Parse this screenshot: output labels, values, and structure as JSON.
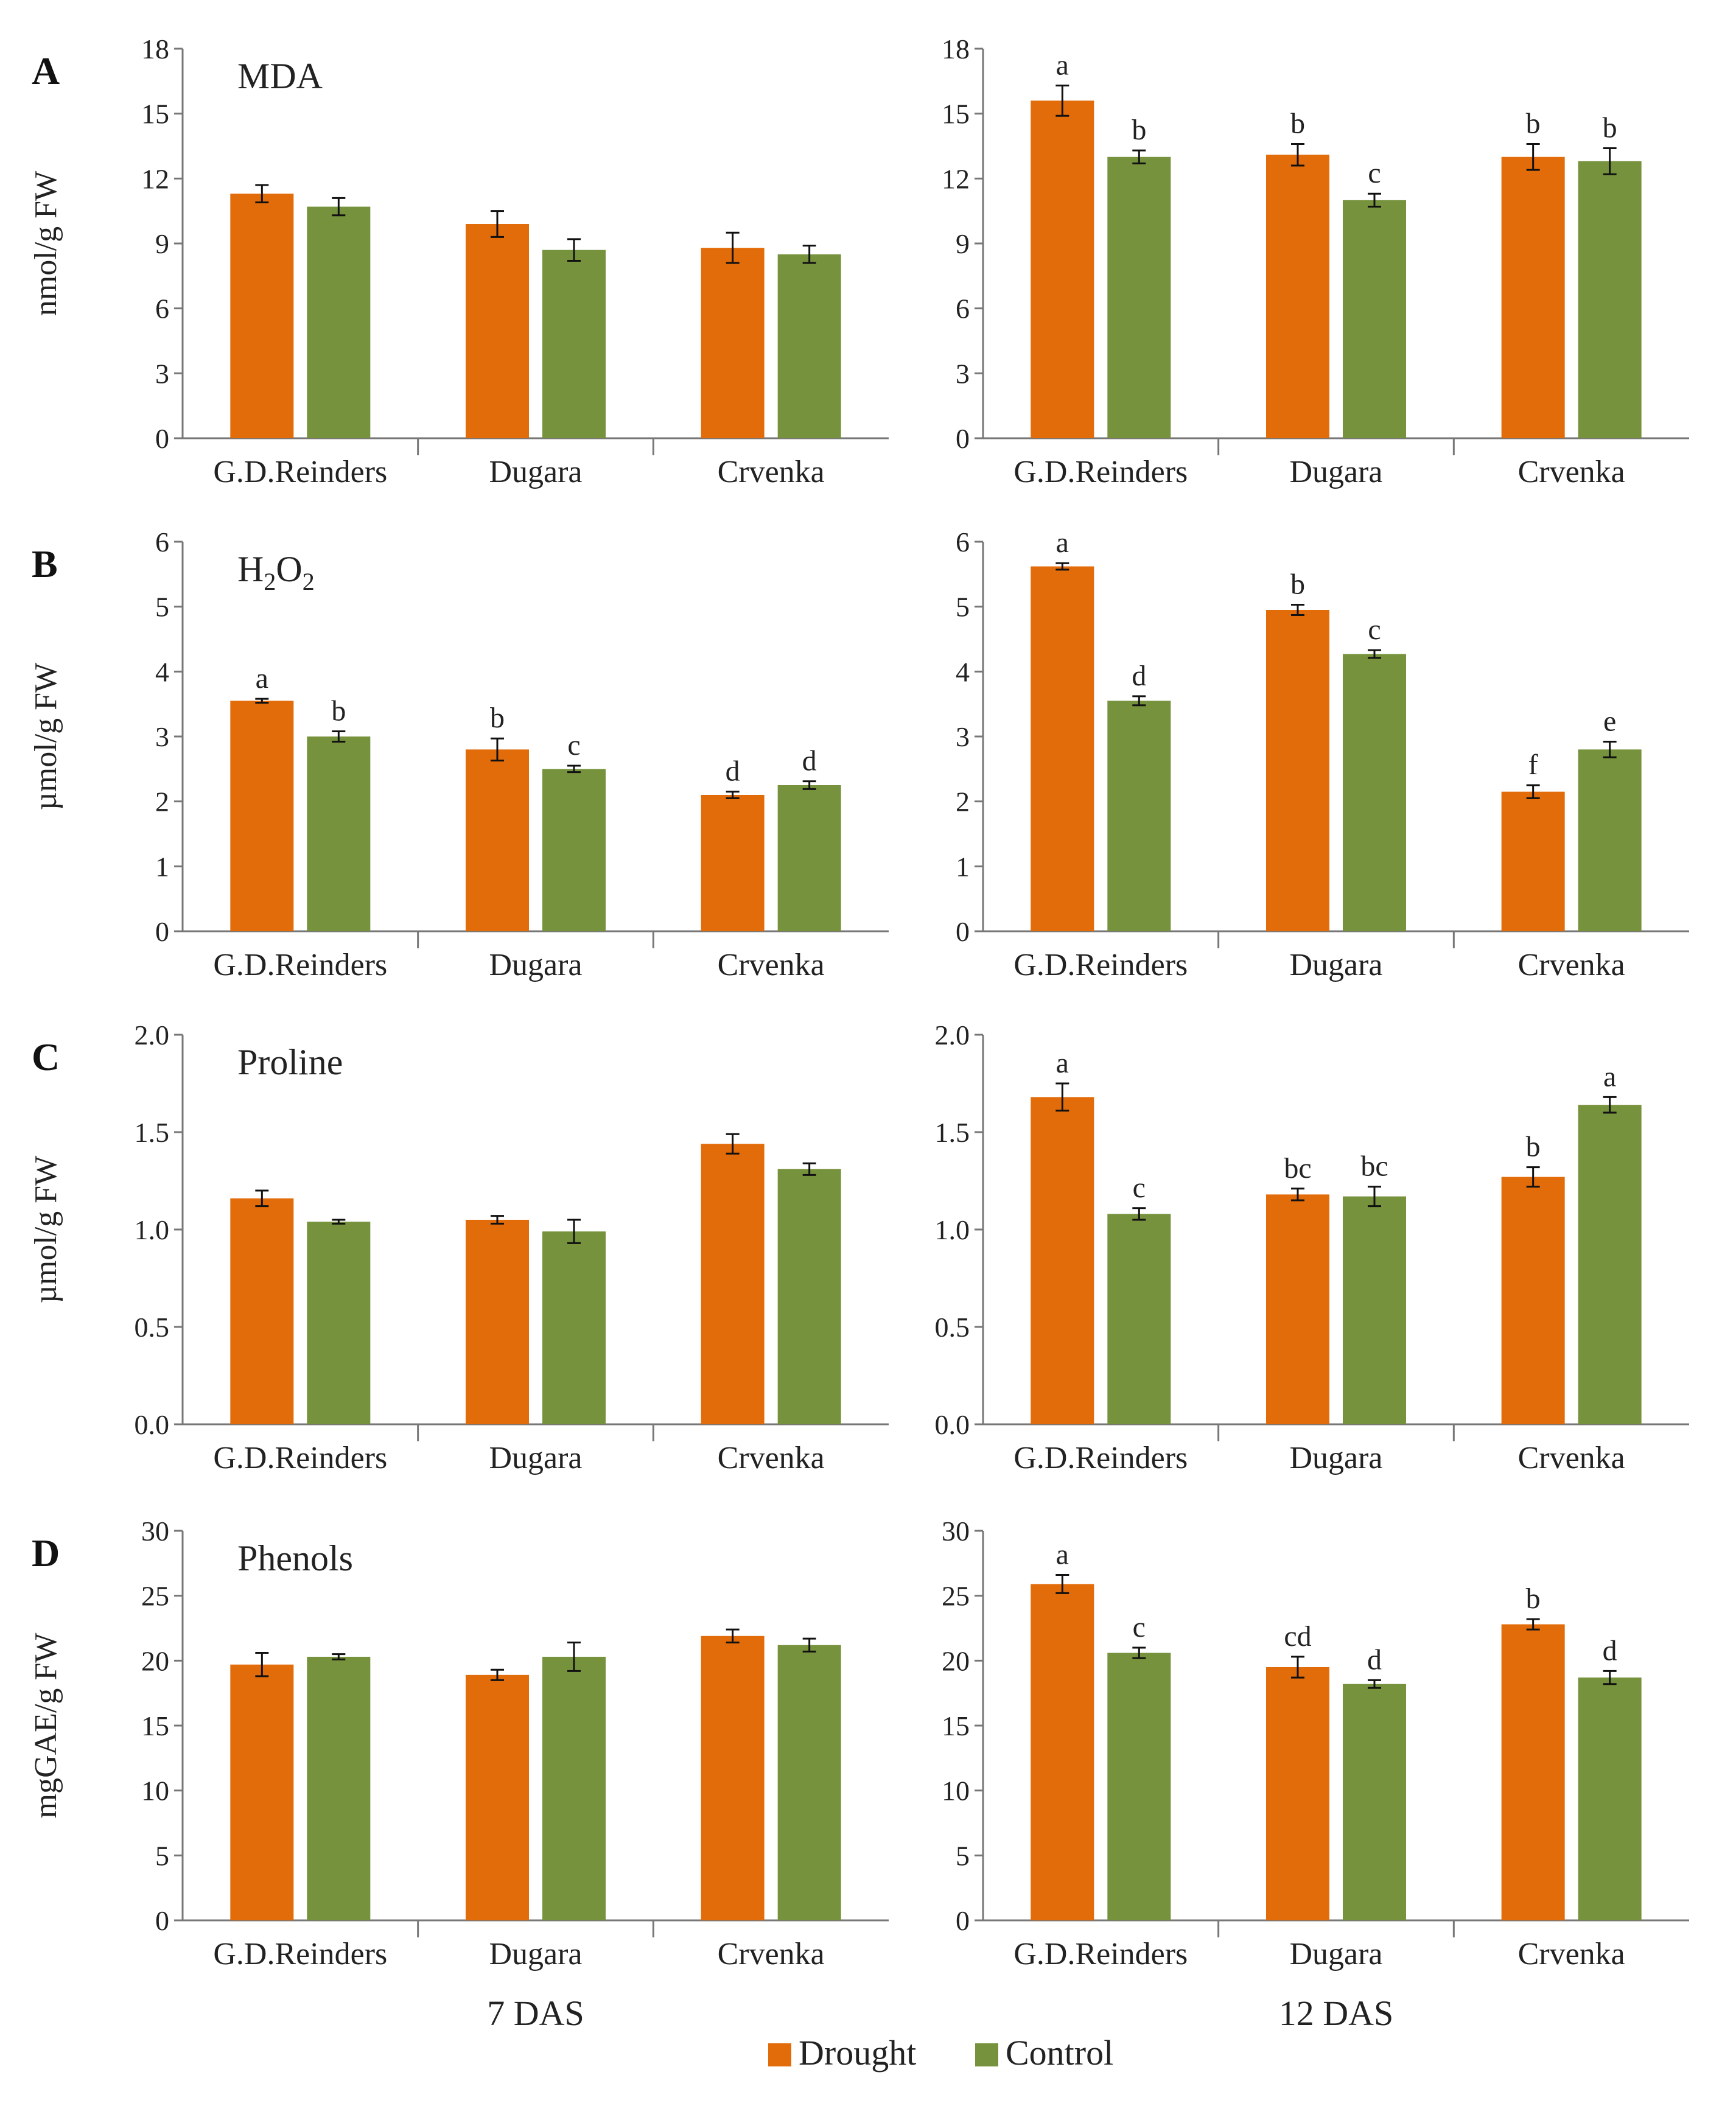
{
  "chart_data": {
    "type": "bar",
    "panels": [
      {
        "letter": "A",
        "title": "MDA",
        "title_sub": "",
        "title_rest": "",
        "ylabel": "nmol/g FW",
        "ylim": [
          0,
          18
        ],
        "yticks": [
          "0",
          "3",
          "6",
          "9",
          "12",
          "15",
          "18"
        ],
        "subplots": [
          {
            "categories": [
              "G.D.Reinders",
              "Dugara",
              "Crvenka"
            ],
            "series": [
              {
                "name": "Drought",
                "values": [
                  11.3,
                  9.9,
                  8.8
                ],
                "errors": [
                  0.4,
                  0.6,
                  0.7
                ]
              },
              {
                "name": "Control",
                "values": [
                  10.7,
                  8.7,
                  8.5
                ],
                "errors": [
                  0.4,
                  0.5,
                  0.4
                ]
              }
            ],
            "labels": [
              [
                "",
                ""
              ],
              [
                "",
                ""
              ],
              [
                "",
                ""
              ]
            ]
          },
          {
            "categories": [
              "G.D.Reinders",
              "Dugara",
              "Crvenka"
            ],
            "series": [
              {
                "name": "Drought",
                "values": [
                  15.6,
                  13.1,
                  13.0
                ],
                "errors": [
                  0.7,
                  0.5,
                  0.6
                ]
              },
              {
                "name": "Control",
                "values": [
                  13.0,
                  11.0,
                  12.8
                ],
                "errors": [
                  0.3,
                  0.3,
                  0.6
                ]
              }
            ],
            "labels": [
              [
                "a",
                "b"
              ],
              [
                "b",
                "c"
              ],
              [
                "b",
                "b"
              ]
            ]
          }
        ]
      },
      {
        "letter": "B",
        "title": "H",
        "title_sub": "2",
        "title_rest": "O",
        "title_sub2": "2",
        "ylabel": "µmol/g FW",
        "ylim": [
          0,
          6
        ],
        "yticks": [
          "0",
          "1",
          "2",
          "3",
          "4",
          "5",
          "6"
        ],
        "subplots": [
          {
            "categories": [
              "G.D.Reinders",
              "Dugara",
              "Crvenka"
            ],
            "series": [
              {
                "name": "Drought",
                "values": [
                  3.55,
                  2.8,
                  2.1
                ],
                "errors": [
                  0.03,
                  0.17,
                  0.05
                ]
              },
              {
                "name": "Control",
                "values": [
                  3.0,
                  2.5,
                  2.25
                ],
                "errors": [
                  0.08,
                  0.05,
                  0.06
                ]
              }
            ],
            "labels": [
              [
                "a",
                "b"
              ],
              [
                "b",
                "c"
              ],
              [
                "d",
                "d"
              ]
            ]
          },
          {
            "categories": [
              "G.D.Reinders",
              "Dugara",
              "Crvenka"
            ],
            "series": [
              {
                "name": "Drought",
                "values": [
                  5.62,
                  4.95,
                  2.15
                ],
                "errors": [
                  0.05,
                  0.08,
                  0.1
                ]
              },
              {
                "name": "Control",
                "values": [
                  3.55,
                  4.27,
                  2.8
                ],
                "errors": [
                  0.07,
                  0.06,
                  0.12
                ]
              }
            ],
            "labels": [
              [
                "a",
                "d"
              ],
              [
                "b",
                "c"
              ],
              [
                "f",
                "e"
              ]
            ]
          }
        ]
      },
      {
        "letter": "C",
        "title": "Proline",
        "title_sub": "",
        "title_rest": "",
        "ylabel": "µmol/g FW",
        "ylim": [
          0,
          2
        ],
        "yticks": [
          "0.0",
          "0.5",
          "1.0",
          "1.5",
          "2.0"
        ],
        "subplots": [
          {
            "categories": [
              "G.D.Reinders",
              "Dugara",
              "Crvenka"
            ],
            "series": [
              {
                "name": "Drought",
                "values": [
                  1.16,
                  1.05,
                  1.44
                ],
                "errors": [
                  0.04,
                  0.02,
                  0.05
                ]
              },
              {
                "name": "Control",
                "values": [
                  1.04,
                  0.99,
                  1.31
                ],
                "errors": [
                  0.01,
                  0.06,
                  0.03
                ]
              }
            ],
            "labels": [
              [
                "",
                ""
              ],
              [
                "",
                ""
              ],
              [
                "",
                ""
              ]
            ]
          },
          {
            "categories": [
              "G.D.Reinders",
              "Dugara",
              "Crvenka"
            ],
            "series": [
              {
                "name": "Drought",
                "values": [
                  1.68,
                  1.18,
                  1.27
                ],
                "errors": [
                  0.07,
                  0.03,
                  0.05
                ]
              },
              {
                "name": "Control",
                "values": [
                  1.08,
                  1.17,
                  1.64
                ],
                "errors": [
                  0.03,
                  0.05,
                  0.04
                ]
              }
            ],
            "labels": [
              [
                "a",
                "c"
              ],
              [
                "bc",
                "bc"
              ],
              [
                "b",
                "a"
              ]
            ]
          }
        ]
      },
      {
        "letter": "D",
        "title": "Phenols",
        "title_sub": "",
        "title_rest": "",
        "ylabel": "mgGAE/g FW",
        "ylim": [
          0,
          30
        ],
        "yticks": [
          "0",
          "5",
          "10",
          "15",
          "20",
          "25",
          "30"
        ],
        "subplots": [
          {
            "categories": [
              "G.D.Reinders",
              "Dugara",
              "Crvenka"
            ],
            "series": [
              {
                "name": "Drought",
                "values": [
                  19.7,
                  18.9,
                  21.9
                ],
                "errors": [
                  0.9,
                  0.4,
                  0.5
                ]
              },
              {
                "name": "Control",
                "values": [
                  20.3,
                  20.3,
                  21.2
                ],
                "errors": [
                  0.2,
                  1.1,
                  0.5
                ]
              }
            ],
            "labels": [
              [
                "",
                ""
              ],
              [
                "",
                ""
              ],
              [
                "",
                ""
              ]
            ]
          },
          {
            "categories": [
              "G.D.Reinders",
              "Dugara",
              "Crvenka"
            ],
            "series": [
              {
                "name": "Drought",
                "values": [
                  25.9,
                  19.5,
                  22.8
                ],
                "errors": [
                  0.7,
                  0.8,
                  0.4
                ]
              },
              {
                "name": "Control",
                "values": [
                  20.6,
                  18.2,
                  18.7
                ],
                "errors": [
                  0.4,
                  0.3,
                  0.5
                ]
              }
            ],
            "labels": [
              [
                "a",
                "c"
              ],
              [
                "cd",
                "d"
              ],
              [
                "b",
                "d"
              ]
            ]
          }
        ]
      }
    ],
    "columns": [
      "7 DAS",
      "12 DAS"
    ],
    "legend": [
      {
        "name": "Drought",
        "color": "#E36C0A"
      },
      {
        "name": "Control",
        "color": "#76923C"
      }
    ],
    "legend_position": "bottom-center"
  }
}
